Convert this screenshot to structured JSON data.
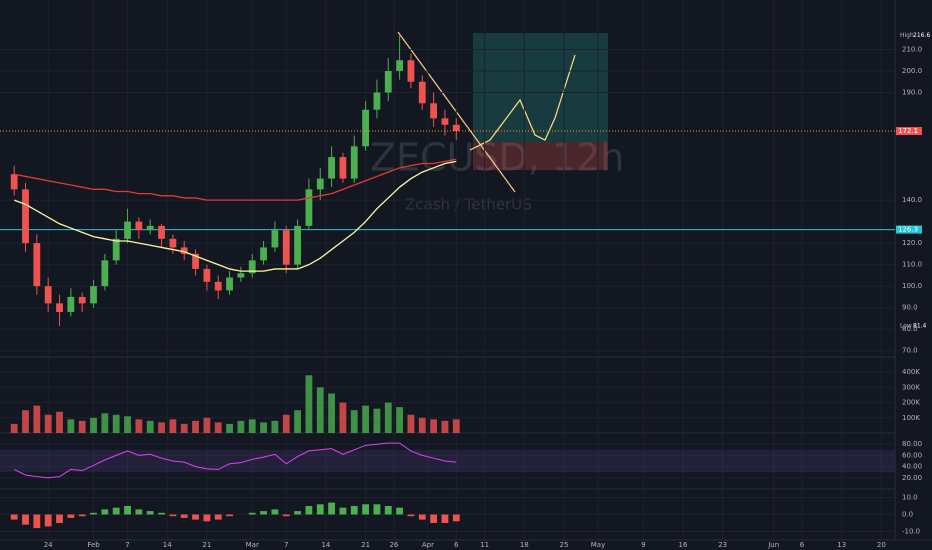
{
  "chart_data": {
    "type": "candlestick",
    "title": "ZECUSD, 12h",
    "subtitle": "Zcash / TetherUS",
    "up_color": "#4caf50",
    "down_color": "#ef5350",
    "x": [
      -6,
      -4,
      -2,
      0,
      2,
      4,
      6,
      8,
      10,
      12,
      14,
      16,
      18,
      20,
      22,
      24,
      26,
      28,
      30,
      32,
      34,
      36,
      38,
      40,
      42,
      44,
      46,
      48,
      50,
      52,
      54,
      56,
      58,
      60,
      62,
      64,
      66,
      68,
      70,
      72
    ],
    "open": [
      152,
      145,
      120,
      100,
      92,
      88,
      95,
      92,
      100,
      112,
      122,
      130,
      126,
      128,
      122,
      118,
      115,
      108,
      102,
      98,
      104,
      106,
      112,
      118,
      126,
      110,
      128,
      145,
      150,
      160,
      150,
      165,
      182,
      190,
      200,
      205,
      195,
      185,
      178,
      175
    ],
    "high": [
      156,
      148,
      124,
      104,
      96,
      99,
      97,
      103,
      115,
      126,
      136,
      132,
      131,
      129,
      124,
      121,
      117,
      110,
      105,
      107,
      109,
      115,
      121,
      130,
      128,
      131,
      150,
      155,
      165,
      162,
      170,
      186,
      196,
      206,
      216.6,
      208,
      198,
      190,
      182,
      178
    ],
    "low": [
      142,
      116,
      96,
      88,
      81.4,
      86,
      88,
      90,
      98,
      110,
      120,
      122,
      124,
      118,
      115,
      112,
      105,
      98,
      94,
      96,
      102,
      104,
      110,
      116,
      106,
      108,
      126,
      140,
      146,
      148,
      148,
      163,
      178,
      186,
      196,
      192,
      182,
      174,
      170,
      168
    ],
    "close": [
      145,
      120,
      100,
      92,
      88,
      95,
      92,
      100,
      112,
      122,
      130,
      126,
      128,
      122,
      118,
      115,
      108,
      102,
      98,
      104,
      106,
      112,
      118,
      126,
      110,
      128,
      145,
      150,
      160,
      150,
      165,
      182,
      190,
      200,
      205,
      195,
      185,
      178,
      175,
      172.1
    ],
    "moving_averages": [
      {
        "color": "#fff59d",
        "values": [
          140,
          138,
          135,
          132,
          129,
          127,
          125,
          123,
          122,
          121,
          121,
          120,
          119,
          118,
          117,
          116,
          114,
          112,
          110,
          108,
          107,
          107,
          107,
          108,
          108,
          108,
          110,
          113,
          117,
          121,
          125,
          130,
          136,
          141,
          146,
          150,
          153,
          155,
          157,
          158
        ]
      },
      {
        "color": "#e53935",
        "values": [
          152,
          151,
          150,
          149,
          148,
          147,
          146,
          145,
          145,
          144,
          144,
          143,
          143,
          142,
          142,
          141,
          141,
          140,
          140,
          140,
          140,
          140,
          140,
          140,
          140,
          140,
          141,
          142,
          143,
          145,
          147,
          149,
          151,
          153,
          155,
          156,
          157,
          157,
          158,
          159
        ]
      }
    ],
    "level": 126.3,
    "level_color": "#26c6da",
    "high_label": "High",
    "high_value": 216.6,
    "low_label": "Low",
    "low_value": 81.4,
    "xlim": [
      -8.5,
      149.4
    ],
    "xticks": [
      {
        "value": 0,
        "label": "24"
      },
      {
        "value": 8,
        "label": "Feb"
      },
      {
        "value": 14,
        "label": "7"
      },
      {
        "value": 21,
        "label": "14"
      },
      {
        "value": 28,
        "label": "21"
      },
      {
        "value": 36,
        "label": "Mar"
      },
      {
        "value": 42,
        "label": "7"
      },
      {
        "value": 49,
        "label": "14"
      },
      {
        "value": 56,
        "label": "21"
      },
      {
        "value": 61,
        "label": "26"
      },
      {
        "value": 67,
        "label": "Apr"
      },
      {
        "value": 72,
        "label": "6"
      },
      {
        "value": 77,
        "label": "11"
      },
      {
        "value": 84,
        "label": "18"
      },
      {
        "value": 91,
        "label": "25"
      },
      {
        "value": 97,
        "label": "May"
      },
      {
        "value": 105,
        "label": "9"
      },
      {
        "value": 112,
        "label": "16"
      },
      {
        "value": 119,
        "label": "23"
      },
      {
        "value": 128,
        "label": "Jun"
      },
      {
        "value": 133,
        "label": "6"
      },
      {
        "value": 140,
        "label": "13"
      },
      {
        "value": 147,
        "label": "20"
      }
    ],
    "ylim": [
      68,
      233
    ],
    "yticks": [
      {
        "value": 70,
        "label": "70.0"
      },
      {
        "value": 80,
        "label": "80.0"
      },
      {
        "value": 90,
        "label": "90.0"
      },
      {
        "value": 100,
        "label": "100.0"
      },
      {
        "value": 110,
        "label": "110.0"
      },
      {
        "value": 120,
        "label": "120.0"
      },
      {
        "value": 140,
        "label": "140.0"
      },
      {
        "value": 190,
        "label": "190.0"
      },
      {
        "value": 200,
        "label": "200.0"
      },
      {
        "value": 210,
        "label": "210.0"
      }
    ],
    "volume": [
      60,
      150,
      180,
      120,
      140,
      90,
      80,
      100,
      130,
      120,
      110,
      90,
      80,
      70,
      90,
      60,
      80,
      100,
      70,
      60,
      80,
      90,
      70,
      80,
      120,
      150,
      380,
      300,
      260,
      200,
      150,
      180,
      160,
      200,
      170,
      120,
      100,
      90,
      80,
      90
    ],
    "volume_ylim": [
      0,
      500
    ],
    "volume_yticks": [
      {
        "value": 100,
        "label": "100K"
      },
      {
        "value": 200,
        "label": "200K"
      },
      {
        "value": 300,
        "label": "300K"
      },
      {
        "value": 400,
        "label": "400K"
      }
    ],
    "rsi": [
      35,
      25,
      22,
      20,
      22,
      35,
      33,
      42,
      52,
      60,
      68,
      60,
      62,
      55,
      50,
      48,
      40,
      36,
      35,
      45,
      47,
      53,
      57,
      62,
      45,
      58,
      68,
      70,
      72,
      62,
      70,
      78,
      80,
      82,
      82,
      68,
      60,
      55,
      50,
      48
    ],
    "rsi_ylim": [
      0,
      100
    ],
    "rsi_yticks": [
      {
        "value": 20,
        "label": "20.00"
      },
      {
        "value": 40,
        "label": "40.00"
      },
      {
        "value": 60,
        "label": "60.00"
      },
      {
        "value": 80,
        "label": "80.00"
      }
    ],
    "macd_hist": [
      -3,
      -6,
      -8,
      -7,
      -5,
      -2,
      -1,
      1,
      3,
      4,
      5,
      3,
      2,
      1,
      -1,
      -2,
      -3,
      -4,
      -3,
      -1,
      0,
      1,
      2,
      3,
      -1,
      2,
      5,
      6,
      7,
      4,
      5,
      6,
      6,
      5,
      4,
      -1,
      -3,
      -5,
      -5,
      -4
    ],
    "macd_ylim": [
      -15,
      15
    ],
    "macd_yticks": [
      {
        "value": -10,
        "label": "-10.0"
      },
      {
        "value": 0,
        "label": "0.0"
      },
      {
        "value": 10,
        "label": "10.0"
      }
    ]
  }
}
